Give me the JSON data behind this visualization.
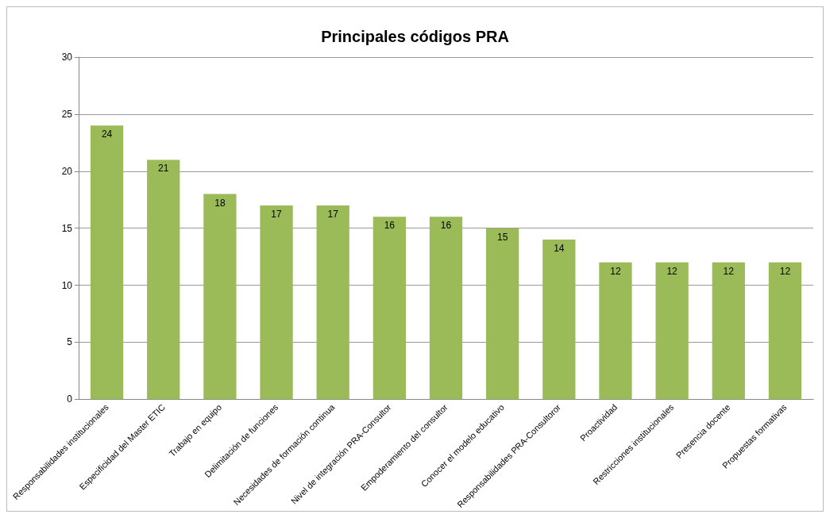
{
  "chart_data": {
    "type": "bar",
    "title": "Principales códigos PRA",
    "categories": [
      "Responsabilidades institucionales",
      "Especificidad del Master ETIC",
      "Trabajo en equipo",
      "Delimitación de funciones",
      "Necesidades de formación continua",
      "Nivel de integración PRA-Consultor",
      "Empoderamiento del consultor",
      "Conocer el modelo educativo",
      "Responsabilidades PRA-Consultoror",
      "Proactividad",
      "Restricciones institucionales",
      "Presencia docente",
      "Propuestas formativas"
    ],
    "values": [
      24,
      21,
      18,
      17,
      17,
      16,
      16,
      15,
      14,
      12,
      12,
      12,
      12
    ],
    "color": "#9bbb59",
    "ylim": [
      0,
      30
    ],
    "yticks": [
      0,
      5,
      10,
      15,
      20,
      25,
      30
    ],
    "grid": "y",
    "data_labels": true
  }
}
